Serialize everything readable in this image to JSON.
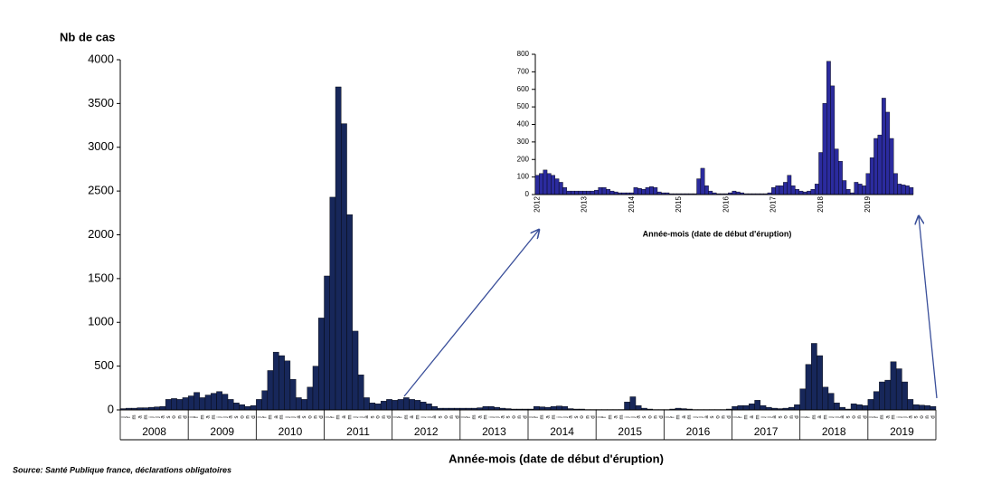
{
  "chart_data": [
    {
      "type": "bar",
      "ylabel": "Nb de cas",
      "xlabel": "Année-mois (date de début d'éruption)",
      "source": "Source: Santé Publique france, déclarations obligatoires",
      "color": "#17275a",
      "categories": [
        "j",
        "f",
        "m",
        "a",
        "m",
        "j",
        "j",
        "a",
        "s",
        "o",
        "n",
        "d",
        "j",
        "f",
        "m",
        "a",
        "m",
        "j",
        "j",
        "a",
        "s",
        "o",
        "n",
        "d",
        "j",
        "f",
        "m",
        "a",
        "m",
        "j",
        "j",
        "a",
        "s",
        "o",
        "n",
        "d",
        "j",
        "f",
        "m",
        "a",
        "m",
        "j",
        "j",
        "a",
        "s",
        "o",
        "n",
        "d",
        "j",
        "f",
        "m",
        "a",
        "m",
        "j",
        "j",
        "a",
        "s",
        "o",
        "n",
        "d",
        "j",
        "f",
        "m",
        "a",
        "m",
        "j",
        "j",
        "a",
        "s",
        "o",
        "n",
        "d",
        "j",
        "f",
        "m",
        "a",
        "m",
        "j",
        "j",
        "a",
        "s",
        "o",
        "n",
        "d",
        "j",
        "f",
        "m",
        "a",
        "m",
        "j",
        "j",
        "a",
        "s",
        "o",
        "n",
        "d",
        "j",
        "f",
        "m",
        "a",
        "m",
        "j",
        "j",
        "a",
        "s",
        "o",
        "n",
        "d",
        "j",
        "f",
        "m",
        "a",
        "m",
        "j",
        "j",
        "a",
        "s",
        "o",
        "n",
        "d",
        "j",
        "f",
        "m",
        "a",
        "m",
        "j",
        "j",
        "a",
        "s",
        "o",
        "n",
        "d",
        "j",
        "f",
        "m",
        "a",
        "m",
        "j",
        "j",
        "a",
        "s",
        "o",
        "n",
        "d"
      ],
      "years": [
        "2008",
        "2009",
        "2010",
        "2011",
        "2012",
        "2013",
        "2014",
        "2015",
        "2016",
        "2017",
        "2018",
        "2019"
      ],
      "values": [
        15,
        20,
        20,
        25,
        25,
        30,
        35,
        40,
        120,
        130,
        120,
        140,
        160,
        200,
        140,
        170,
        190,
        210,
        180,
        120,
        80,
        60,
        40,
        50,
        120,
        220,
        450,
        660,
        620,
        560,
        350,
        140,
        120,
        260,
        500,
        1050,
        1530,
        2430,
        3690,
        3270,
        2230,
        900,
        400,
        140,
        80,
        70,
        100,
        120,
        110,
        120,
        140,
        120,
        110,
        90,
        70,
        40,
        20,
        20,
        20,
        20,
        20,
        20,
        20,
        25,
        40,
        40,
        30,
        20,
        15,
        10,
        10,
        10,
        10,
        40,
        35,
        30,
        40,
        45,
        40,
        15,
        10,
        10,
        5,
        5,
        5,
        5,
        5,
        5,
        5,
        90,
        150,
        50,
        20,
        10,
        5,
        5,
        5,
        10,
        20,
        15,
        10,
        5,
        5,
        5,
        5,
        5,
        5,
        10,
        40,
        50,
        50,
        70,
        110,
        50,
        30,
        20,
        15,
        20,
        30,
        60,
        240,
        520,
        760,
        620,
        260,
        190,
        80,
        30,
        10,
        70,
        60,
        50,
        120,
        210,
        320,
        340,
        550,
        470,
        320,
        120,
        60,
        55,
        50,
        40
      ],
      "ylim": [
        0,
        4000
      ],
      "yticks": [
        0,
        500,
        1000,
        1500,
        2000,
        2500,
        3000,
        3500,
        4000
      ]
    },
    {
      "type": "bar",
      "xlabel": "Année-mois (date de début d'éruption)",
      "color": "#2b2b9e",
      "categories": [
        "2012",
        null,
        null,
        null,
        null,
        null,
        null,
        null,
        null,
        null,
        null,
        null,
        "2013",
        null,
        null,
        null,
        null,
        null,
        null,
        null,
        null,
        null,
        null,
        null,
        "2014",
        null,
        null,
        null,
        null,
        null,
        null,
        null,
        null,
        null,
        null,
        null,
        "2015",
        null,
        null,
        null,
        null,
        null,
        null,
        null,
        null,
        null,
        null,
        null,
        "2016",
        null,
        null,
        null,
        null,
        null,
        null,
        null,
        null,
        null,
        null,
        null,
        "2017",
        null,
        null,
        null,
        null,
        null,
        null,
        null,
        null,
        null,
        null,
        null,
        "2018",
        null,
        null,
        null,
        null,
        null,
        null,
        null,
        null,
        null,
        null,
        null,
        "2019",
        null,
        null,
        null,
        null,
        null,
        null,
        null,
        null,
        null,
        null,
        null
      ],
      "values": [
        110,
        120,
        140,
        120,
        110,
        90,
        70,
        40,
        20,
        20,
        20,
        20,
        20,
        20,
        20,
        25,
        40,
        40,
        30,
        20,
        15,
        10,
        10,
        10,
        10,
        40,
        35,
        30,
        40,
        45,
        40,
        15,
        10,
        10,
        5,
        5,
        5,
        5,
        5,
        5,
        5,
        90,
        150,
        50,
        20,
        10,
        5,
        5,
        5,
        10,
        20,
        15,
        10,
        5,
        5,
        5,
        5,
        5,
        5,
        10,
        40,
        50,
        50,
        70,
        110,
        50,
        30,
        20,
        15,
        20,
        30,
        60,
        240,
        520,
        760,
        620,
        260,
        190,
        80,
        30,
        10,
        70,
        60,
        50,
        120,
        210,
        320,
        340,
        550,
        470,
        320,
        120,
        60,
        55,
        50,
        40
      ],
      "ylim": [
        0,
        800
      ],
      "yticks": [
        0,
        100,
        200,
        300,
        400,
        500,
        600,
        700,
        800
      ]
    }
  ]
}
